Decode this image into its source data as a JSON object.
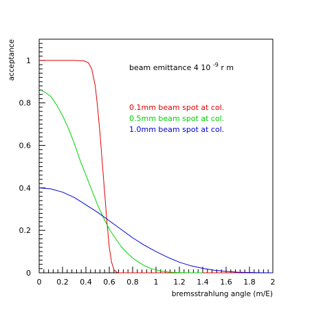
{
  "chart_data": {
    "type": "line",
    "title": "",
    "xlabel": "bremsstrahlung angle (m/E)",
    "ylabel": "acceptance",
    "xlim": [
      0,
      2
    ],
    "ylim": [
      0,
      1.1
    ],
    "grid": false,
    "x_ticks": [
      "0",
      "0.2",
      "0.4",
      "0.6",
      "0.8",
      "1",
      "1.2",
      "1.4",
      "1.6",
      "1.8",
      "2"
    ],
    "y_ticks": [
      "0",
      "0.2",
      "0.4",
      "0.6",
      "0.8",
      "1"
    ],
    "annotation": {
      "prefix": "beam emittance 4 10",
      "exponent": "-9",
      "suffix": " r m"
    },
    "legend_position": "upper-right",
    "series": [
      {
        "name": "0.1mm beam spot at col.",
        "color": "#e00000",
        "x": [
          0.0,
          0.1,
          0.2,
          0.3,
          0.38,
          0.42,
          0.45,
          0.48,
          0.5,
          0.52,
          0.54,
          0.56,
          0.58,
          0.6,
          0.62,
          0.64,
          0.66,
          0.68,
          0.7,
          0.75,
          0.8,
          1.0,
          1.5,
          2.0
        ],
        "y": [
          1.0,
          1.0,
          1.0,
          1.0,
          0.998,
          0.99,
          0.96,
          0.88,
          0.78,
          0.66,
          0.52,
          0.38,
          0.24,
          0.12,
          0.05,
          0.015,
          0.004,
          0.0,
          0.0,
          0.0,
          0.0,
          0.0,
          0.0,
          0.0
        ]
      },
      {
        "name": "0.5mm beam spot at col.",
        "color": "#00d000",
        "x": [
          0.0,
          0.05,
          0.1,
          0.15,
          0.2,
          0.25,
          0.3,
          0.35,
          0.4,
          0.45,
          0.5,
          0.55,
          0.6,
          0.65,
          0.7,
          0.75,
          0.8,
          0.85,
          0.9,
          0.95,
          1.0,
          1.05,
          1.1,
          1.15,
          1.2,
          1.3,
          1.4
        ],
        "y": [
          0.865,
          0.85,
          0.83,
          0.79,
          0.74,
          0.68,
          0.61,
          0.53,
          0.46,
          0.39,
          0.32,
          0.26,
          0.205,
          0.165,
          0.125,
          0.095,
          0.07,
          0.05,
          0.034,
          0.022,
          0.014,
          0.008,
          0.004,
          0.002,
          0.001,
          0.0,
          0.0
        ]
      },
      {
        "name": "1.0mm beam spot at col.",
        "color": "#0000d0",
        "x": [
          0.0,
          0.1,
          0.2,
          0.3,
          0.4,
          0.5,
          0.6,
          0.7,
          0.8,
          0.9,
          1.0,
          1.1,
          1.2,
          1.3,
          1.4,
          1.5,
          1.6,
          1.7,
          1.8,
          1.9,
          2.0
        ],
        "y": [
          0.4,
          0.395,
          0.38,
          0.355,
          0.32,
          0.285,
          0.245,
          0.205,
          0.165,
          0.13,
          0.1,
          0.073,
          0.05,
          0.033,
          0.021,
          0.012,
          0.007,
          0.003,
          0.0015,
          0.0005,
          0.0
        ]
      }
    ]
  }
}
